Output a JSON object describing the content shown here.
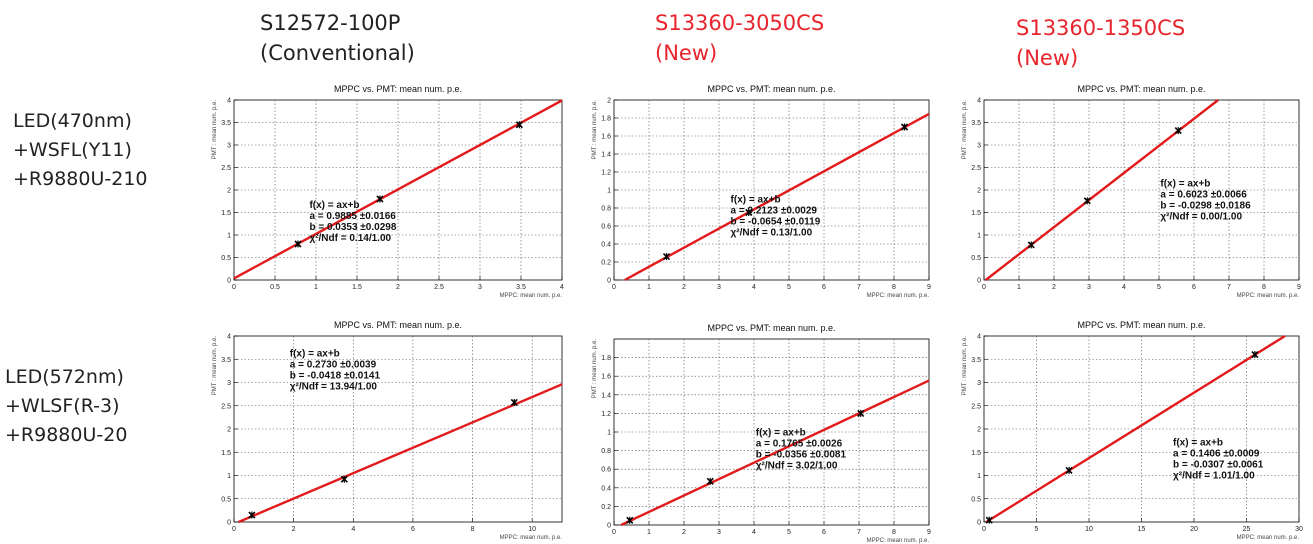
{
  "columns": [
    {
      "line1": "S12572-100P",
      "line2": "(Conventional)",
      "color": "#222222"
    },
    {
      "line1": "S13360-3050CS",
      "line2": "(New)",
      "color": "#e8242c"
    },
    {
      "line1": "S13360-1350CS",
      "line2": "(New)",
      "color": "#e8242c"
    }
  ],
  "rows": [
    {
      "line1": "LED(470nm)",
      "line2": "+WSFL(Y11)",
      "line3": "+R9880U-210"
    },
    {
      "line1": "LED(572nm)",
      "line2": "+WLSF(R-3)",
      "line3": "+R9880U-20"
    }
  ],
  "colors": {
    "fit_line": "#e31a1c",
    "grid": "#555555",
    "marker": "#000000"
  },
  "chart_data": [
    {
      "type": "scatter",
      "title": "MPPC vs. PMT: mean num. p.e.",
      "xlabel": "MPPC: mean num. p.e.",
      "ylabel": "PMT : mean num. p.e.",
      "xlim": [
        0,
        4
      ],
      "ylim": [
        0,
        4
      ],
      "xticks": [
        0,
        0.5,
        1,
        1.5,
        2,
        2.5,
        3,
        3.5,
        4
      ],
      "yticks": [
        0,
        0.5,
        1,
        1.5,
        2,
        2.5,
        3,
        3.5,
        4
      ],
      "grid": true,
      "points": [
        {
          "x": 0.78,
          "y": 0.8
        },
        {
          "x": 1.78,
          "y": 1.8
        },
        {
          "x": 3.48,
          "y": 3.45
        }
      ],
      "fit": {
        "a": 0.9885,
        "b": 0.0353
      },
      "fit_text": [
        "f(x) = ax+b",
        "a = 0.9885  ±0.0166",
        "b = 0.0353  ±0.0298",
        "χ²/Ndf = 0.14/1.00"
      ]
    },
    {
      "type": "scatter",
      "title": "MPPC vs. PMT: mean num. p.e.",
      "xlabel": "MPPC: mean num. p.e.",
      "ylabel": "PMT : mean num. p.e.",
      "xlim": [
        0,
        9
      ],
      "ylim": [
        0,
        2
      ],
      "xticks": [
        0,
        1,
        2,
        3,
        4,
        5,
        6,
        7,
        8,
        9
      ],
      "yticks": [
        0,
        0.2,
        0.4,
        0.6,
        0.8,
        1,
        1.2,
        1.4,
        1.6,
        1.8,
        2
      ],
      "grid": true,
      "points": [
        {
          "x": 1.5,
          "y": 0.26
        },
        {
          "x": 3.85,
          "y": 0.75
        },
        {
          "x": 8.3,
          "y": 1.7
        }
      ],
      "fit": {
        "a": 0.2123,
        "b": -0.0654
      },
      "fit_text": [
        "f(x) = ax+b",
        "a = 0.2123  ±0.0029",
        "b = -0.0654  ±0.0119",
        "χ²/Ndf = 0.13/1.00"
      ]
    },
    {
      "type": "scatter",
      "title": "MPPC vs. PMT: mean num. p.e.",
      "xlabel": "MPPC: mean num. p.e.",
      "ylabel": "PMT : mean num. p.e.",
      "xlim": [
        0,
        9
      ],
      "ylim": [
        0,
        4
      ],
      "xticks": [
        0,
        1,
        2,
        3,
        4,
        5,
        6,
        7,
        8,
        9
      ],
      "yticks": [
        0,
        0.5,
        1,
        1.5,
        2,
        2.5,
        3,
        3.5,
        4
      ],
      "grid": true,
      "points": [
        {
          "x": 1.35,
          "y": 0.78
        },
        {
          "x": 2.95,
          "y": 1.76
        },
        {
          "x": 5.55,
          "y": 3.32
        }
      ],
      "fit": {
        "a": 0.6023,
        "b": -0.0298
      },
      "fit_text": [
        "f(x) = ax+b",
        "a = 0.6023  ±0.0066",
        "b = -0.0298  ±0.0186",
        "χ²/Ndf = 0.00/1.00"
      ]
    },
    {
      "type": "scatter",
      "title": "MPPC vs. PMT: mean num. p.e.",
      "xlabel": "MPPC: mean num. p.e.",
      "ylabel": "PMT : mean num. p.e.",
      "xlim": [
        0,
        11
      ],
      "ylim": [
        0,
        4
      ],
      "xticks": [
        0,
        2,
        4,
        6,
        8,
        10
      ],
      "yticks": [
        0,
        0.5,
        1,
        1.5,
        2,
        2.5,
        3,
        3.5,
        4
      ],
      "grid": true,
      "points": [
        {
          "x": 0.6,
          "y": 0.15
        },
        {
          "x": 3.7,
          "y": 0.92
        },
        {
          "x": 9.4,
          "y": 2.57
        }
      ],
      "fit": {
        "a": 0.273,
        "b": -0.0418
      },
      "fit_text": [
        "f(x) = ax+b",
        "a = 0.2730  ±0.0039",
        "b = -0.0418  ±0.0141",
        "χ²/Ndf = 13.94/1.00"
      ]
    },
    {
      "type": "scatter",
      "title": "MPPC vs. PMT: mean num. p.e.",
      "xlabel": "MPPC: mean num. p.e.",
      "ylabel": "PMT : mean num. p.e.",
      "xlim": [
        0,
        9
      ],
      "ylim": [
        0,
        2
      ],
      "xticks": [
        0,
        1,
        2,
        3,
        4,
        5,
        6,
        7,
        8,
        9
      ],
      "yticks": [
        0,
        0.2,
        0.4,
        0.6,
        0.8,
        1,
        1.2,
        1.4,
        1.6,
        1.8
      ],
      "grid": true,
      "points": [
        {
          "x": 0.45,
          "y": 0.05
        },
        {
          "x": 2.75,
          "y": 0.47
        },
        {
          "x": 7.05,
          "y": 1.2
        }
      ],
      "fit": {
        "a": 0.1765,
        "b": -0.0356
      },
      "fit_text": [
        "f(x) = ax+b",
        "a = 0.1765  ±0.0026",
        "b = -0.0356  ±0.0081",
        "χ²/Ndf = 3.02/1.00"
      ]
    },
    {
      "type": "scatter",
      "title": "MPPC vs. PMT: mean num. p.e.",
      "xlabel": "MPPC: mean num. p.e.",
      "ylabel": "PMT : mean num. p.e.",
      "xlim": [
        0,
        30
      ],
      "ylim": [
        0,
        4
      ],
      "xticks": [
        0,
        5,
        10,
        15,
        20,
        25,
        30
      ],
      "yticks": [
        0,
        0.5,
        1,
        1.5,
        2,
        2.5,
        3,
        3.5,
        4
      ],
      "grid": true,
      "points": [
        {
          "x": 0.5,
          "y": 0.04
        },
        {
          "x": 8.1,
          "y": 1.11
        },
        {
          "x": 25.8,
          "y": 3.6
        }
      ],
      "fit": {
        "a": 0.1406,
        "b": -0.0307
      },
      "fit_text": [
        "f(x) = ax+b",
        "a = 0.1406  ±0.0009",
        "b = -0.0307  ±0.0061",
        "χ²/Ndf = 1.01/1.00"
      ]
    }
  ]
}
